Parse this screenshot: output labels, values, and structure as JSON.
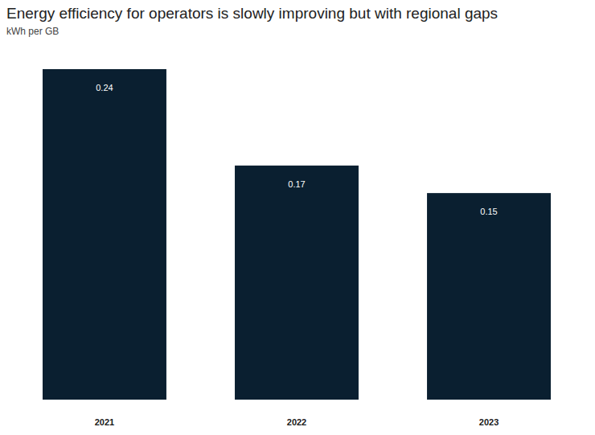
{
  "chart_data": {
    "type": "bar",
    "title": "Energy efficiency for operators is slowly improving but with regional gaps",
    "subtitle": "kWh per GB",
    "categories": [
      "2021",
      "2022",
      "2023"
    ],
    "values": [
      0.24,
      0.17,
      0.15
    ],
    "color": "#0a1f30",
    "ylim": [
      0,
      0.24
    ],
    "data_labels": true,
    "tick_labels": "x",
    "grid": false
  }
}
